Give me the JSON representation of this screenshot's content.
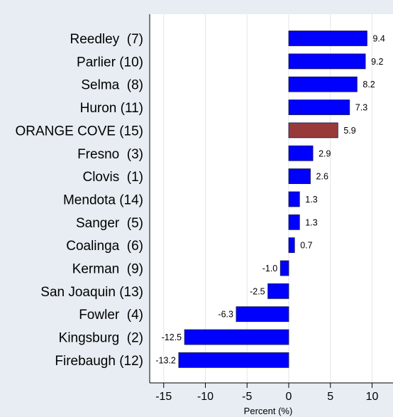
{
  "chart_data": {
    "type": "bar",
    "orientation": "horizontal",
    "categories": [
      "Reedley  (7)",
      "Parlier (10)",
      "Selma  (8)",
      "Huron (11)",
      "ORANGE COVE (15)",
      "Fresno  (3)",
      "Clovis  (1)",
      "Mendota (14)",
      "Sanger  (5)",
      "Coalinga  (6)",
      "Kerman  (9)",
      "San Joaquin (13)",
      "Fowler  (4)",
      "Kingsburg  (2)",
      "Firebaugh (12)"
    ],
    "values": [
      9.4,
      9.2,
      8.2,
      7.3,
      5.9,
      2.9,
      2.6,
      1.3,
      1.3,
      0.7,
      -1.0,
      -2.5,
      -6.3,
      -12.5,
      -13.2
    ],
    "value_labels": [
      "9.4",
      "9.2",
      "8.2",
      "7.3",
      "5.9",
      "2.9",
      "2.6",
      "1.3",
      "1.3",
      "0.7",
      "-1.0",
      "-2.5",
      "-6.3",
      "-12.5",
      "-13.2"
    ],
    "highlight_index": 4,
    "xlabel": "Percent (%)",
    "xlim": [
      -16.5,
      11.5
    ],
    "xticks": [
      -15,
      -10,
      -5,
      0,
      5,
      10
    ],
    "xtick_labels": [
      "-15",
      "-10",
      "-5",
      "0",
      "5",
      "10"
    ],
    "grid": "vertical",
    "colors": {
      "bar": "#0000ff",
      "highlight": "#983a3a",
      "background": "#e7edf2",
      "plot_background": "#ffffff",
      "grid": "#e3e6ea"
    }
  }
}
